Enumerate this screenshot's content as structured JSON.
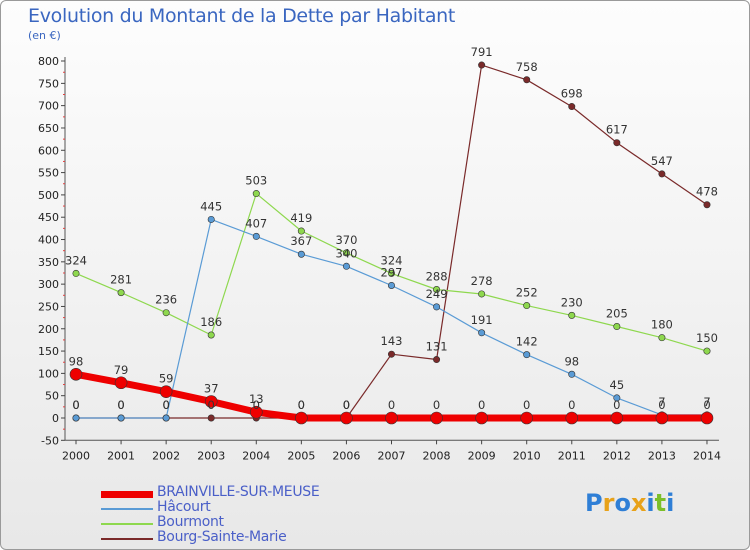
{
  "title": "Evolution du Montant de la Dette par Habitant",
  "subtitle": "(en €)",
  "logo": {
    "text": "Proxiti",
    "colors": [
      "#2f7fd6",
      "#e8a21a",
      "#2f7fd6",
      "#e8a21a",
      "#2f7fd6",
      "#7cbf2a",
      "#2f7fd6"
    ]
  },
  "chart_data": {
    "type": "line",
    "x": [
      "2000",
      "2001",
      "2002",
      "2003",
      "2004",
      "2005",
      "2006",
      "2007",
      "2008",
      "2009",
      "2010",
      "2011",
      "2012",
      "2013",
      "2014"
    ],
    "ylim": [
      -50,
      800
    ],
    "yticks": [
      -50,
      0,
      50,
      100,
      150,
      200,
      250,
      300,
      350,
      400,
      450,
      500,
      550,
      600,
      650,
      700,
      750,
      800
    ],
    "grid": false,
    "legend_position": "bottom-left",
    "series": [
      {
        "name": "Bourg-Sainte-Marie",
        "color": "#7a2a2a",
        "width": 1.2,
        "marker": 3.2,
        "values": [
          0,
          0,
          0,
          0,
          0,
          0,
          0,
          143,
          131,
          791,
          758,
          698,
          617,
          547,
          478
        ]
      },
      {
        "name": "Bourmont",
        "color": "#8ed84e",
        "width": 1.2,
        "marker": 3.2,
        "values": [
          324,
          281,
          236,
          186,
          503,
          419,
          370,
          324,
          288,
          278,
          252,
          230,
          205,
          180,
          150
        ]
      },
      {
        "name": "Hâcourt",
        "color": "#5a9bd5",
        "width": 1.2,
        "marker": 3.2,
        "values": [
          0,
          0,
          0,
          445,
          407,
          367,
          340,
          297,
          249,
          191,
          142,
          98,
          45,
          7,
          7
        ],
        "labels": [
          "0",
          "0",
          "0",
          "445",
          "407",
          "367",
          "340",
          "297",
          "249",
          "191",
          "142",
          "98",
          "45",
          "7",
          "7"
        ]
      },
      {
        "name": "BRAINVILLE-SUR-MEUSE",
        "color": "#ee0000",
        "width": 7,
        "marker": 6,
        "values": [
          98,
          79,
          59,
          37,
          13,
          0,
          0,
          0,
          0,
          0,
          0,
          0,
          0,
          0,
          0
        ]
      }
    ],
    "legend_order": [
      "BRAINVILLE-SUR-MEUSE",
      "Hâcourt",
      "Bourmont",
      "Bourg-Sainte-Marie"
    ]
  }
}
